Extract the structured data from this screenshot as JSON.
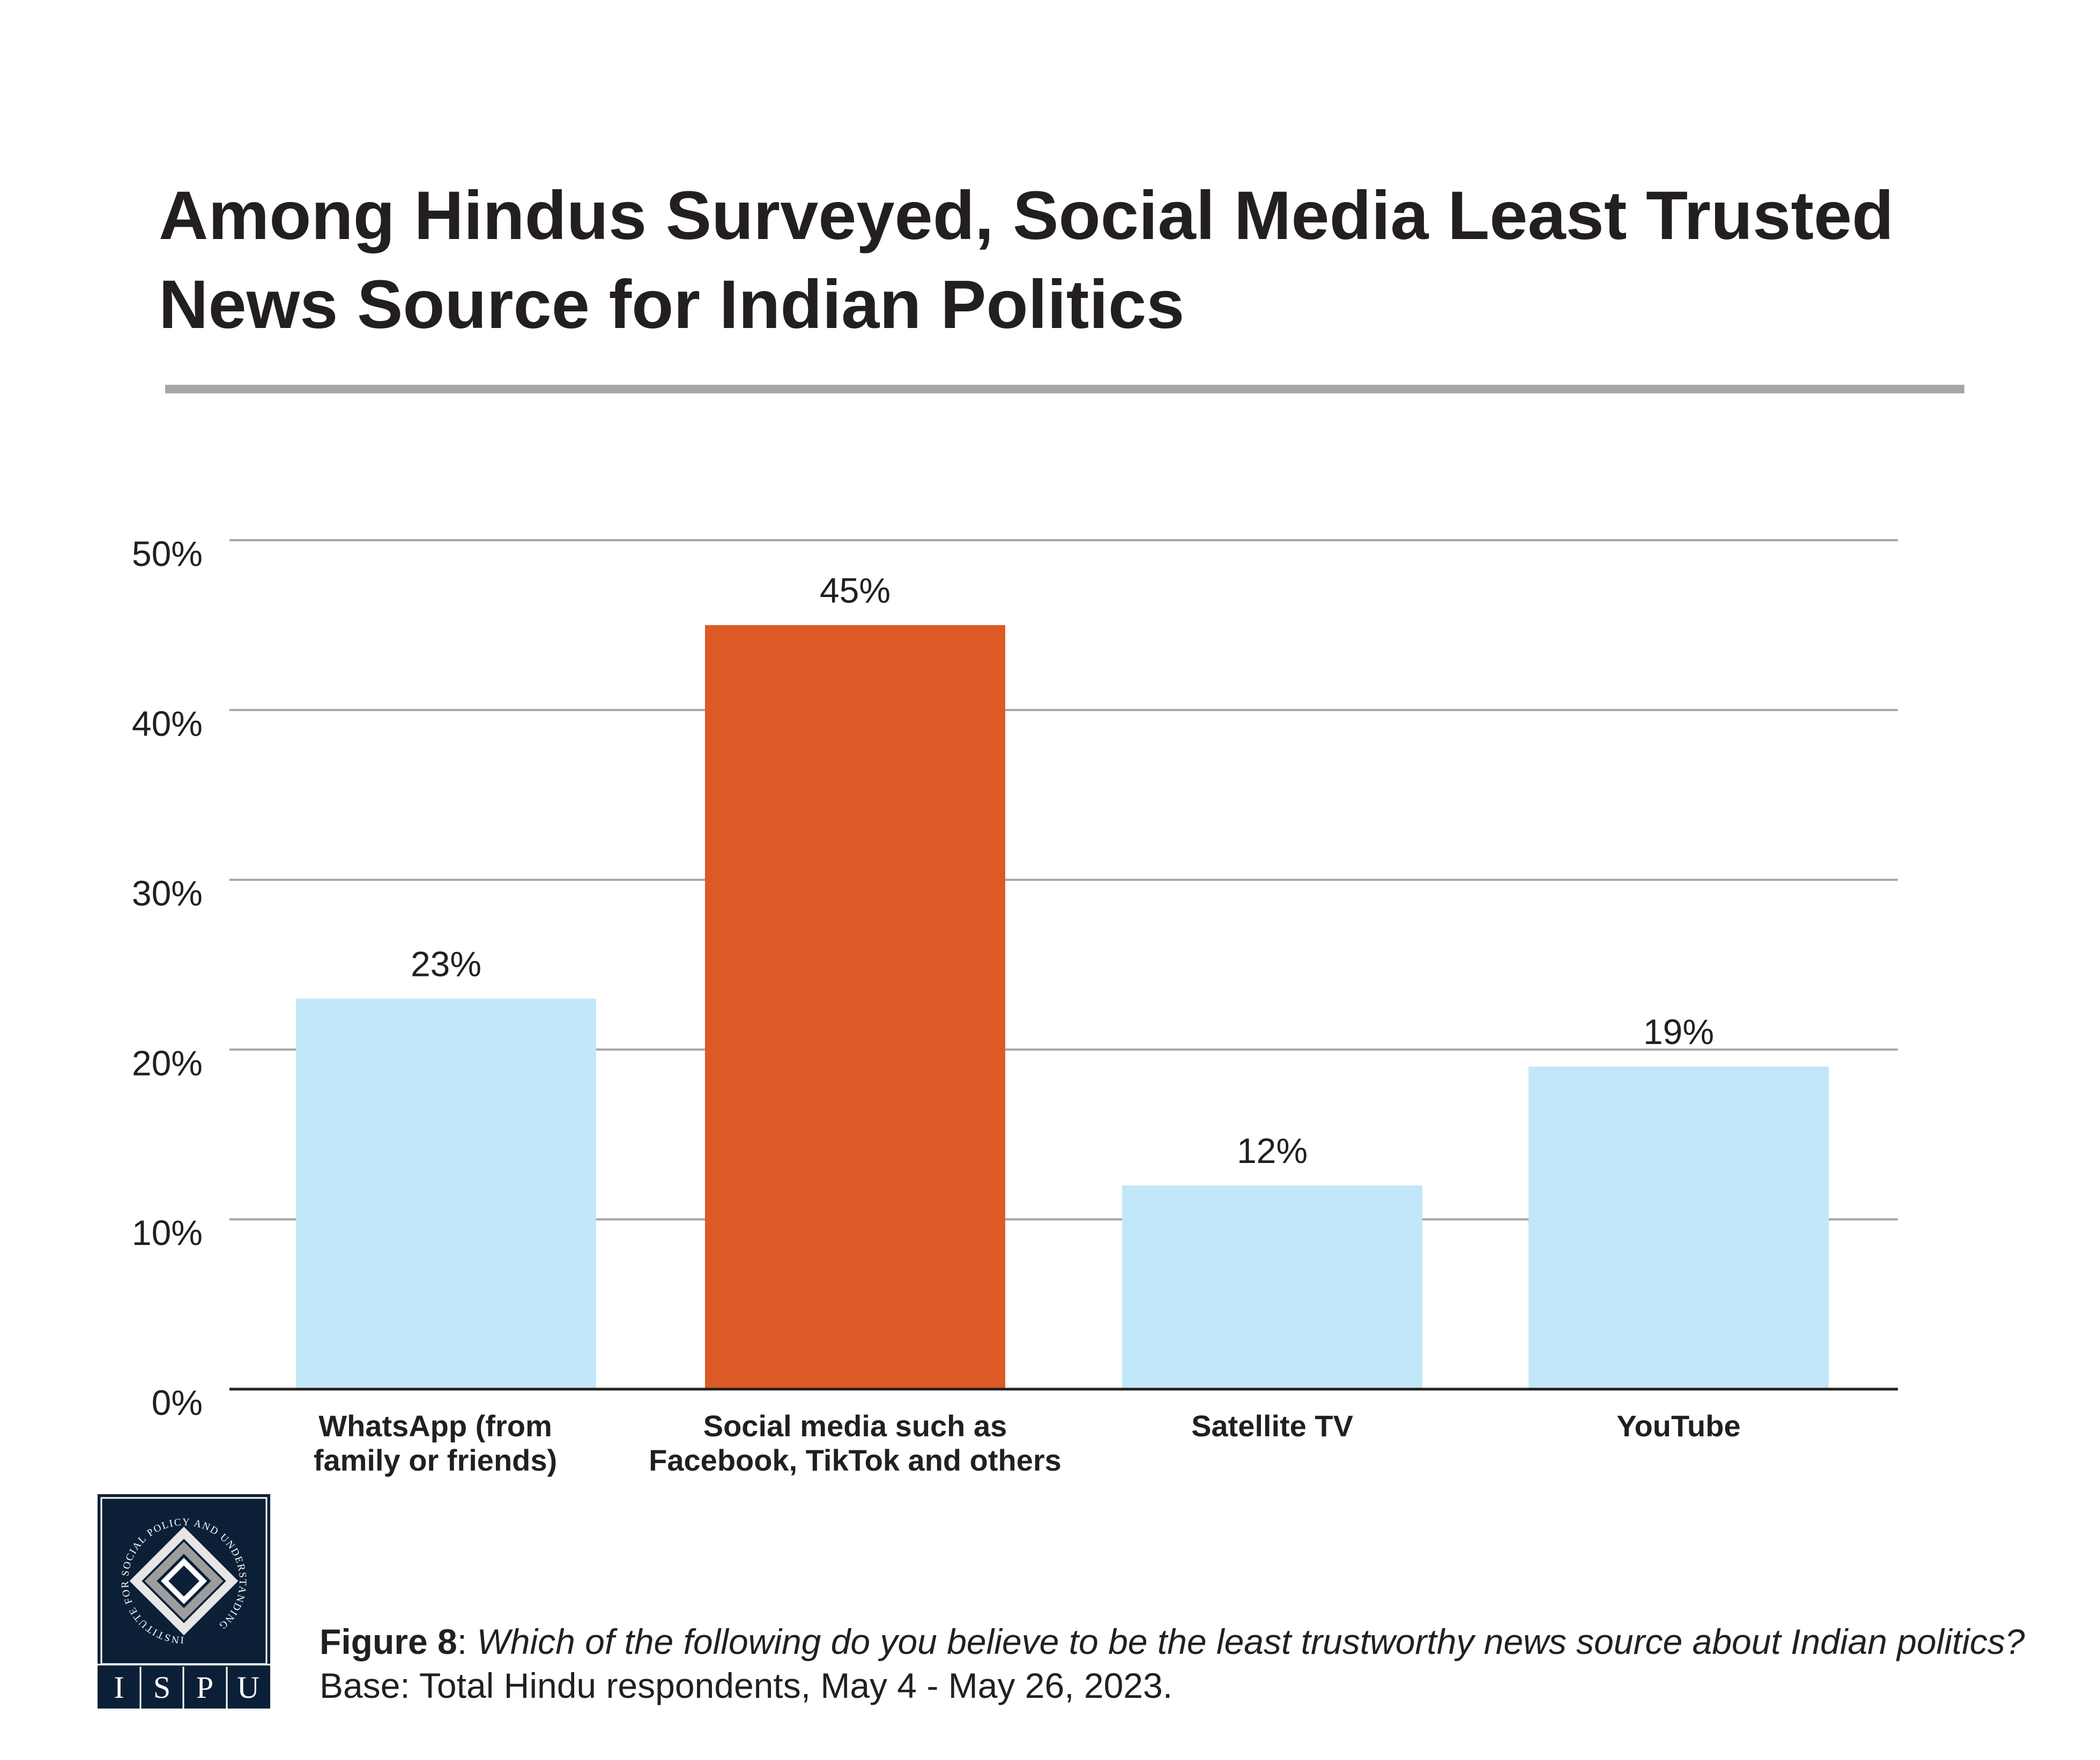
{
  "title_line1": "Among Hindus Surveyed, Social Media Least Trusted",
  "title_line2": "News Source for Indian Politics",
  "colors": {
    "highlight": "#dc5a26",
    "default_bar": "#c2e7f9",
    "grid": "#a6a6a6",
    "text": "#231f20",
    "logo_bg": "#0b2037"
  },
  "chart_data": {
    "type": "bar",
    "title": "Among Hindus Surveyed, Social Media Least Trusted News Source for Indian Politics",
    "categories": [
      [
        "WhatsApp (from",
        "family or friends)"
      ],
      [
        "Social media such as",
        "Facebook, TikTok and others"
      ],
      [
        "Satellite TV"
      ],
      [
        "YouTube"
      ]
    ],
    "values": [
      23,
      45,
      12,
      19
    ],
    "data_labels": [
      "23%",
      "45%",
      "12%",
      "19%"
    ],
    "highlight_index": 1,
    "ylim": [
      0,
      50
    ],
    "yticks": [
      "0%",
      "10%",
      "20%",
      "30%",
      "40%",
      "50%"
    ],
    "grid": true
  },
  "logo": {
    "arc_text": "INSTITUTE FOR SOCIAL POLICY AND UNDERSTANDING",
    "letters": [
      "I",
      "S",
      "P",
      "U"
    ]
  },
  "caption": {
    "figure": "Figure 8",
    "colon": ": ",
    "question": "Which of the following do you believe to be the least trustworthy news source about Indian politics?",
    "base": " Base: Total Hindu respondents, May 4 - May 26, 2023."
  }
}
